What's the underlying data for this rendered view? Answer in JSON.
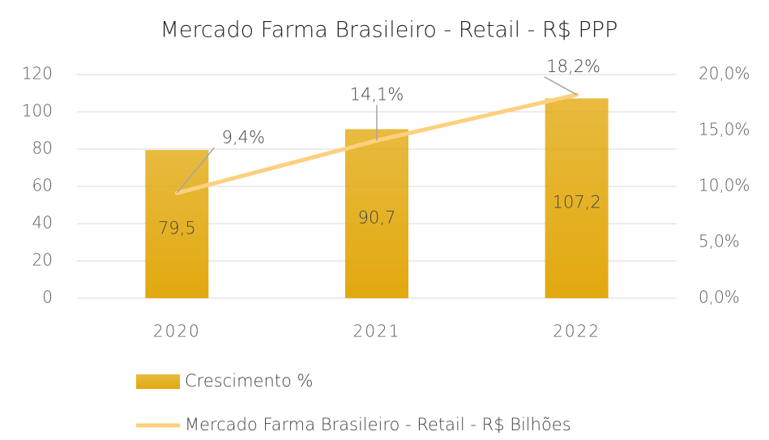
{
  "chart_data": {
    "type": "bar",
    "title": "Mercado Farma Brasileiro - Retail - R$ PPP",
    "categories": [
      "2020",
      "2021",
      "2022"
    ],
    "series": [
      {
        "name": "Crescimento %",
        "type": "bar",
        "color": "#e2a90f",
        "values": [
          79.5,
          90.7,
          107.2
        ],
        "value_labels": [
          "79,5",
          "90,7",
          "107,2"
        ]
      },
      {
        "name": "Mercado Farma Brasileiro - Retail - R$ Bilhões",
        "type": "line",
        "axis": "y2",
        "color": "#fdd07f",
        "values": [
          9.4,
          14.1,
          18.2
        ],
        "value_labels": [
          "9,4%",
          "14,1%",
          "18,2%"
        ]
      }
    ],
    "ylim": [
      0,
      120
    ],
    "yticks": [
      0,
      20,
      40,
      60,
      80,
      100,
      120
    ],
    "y2lim": [
      0,
      20
    ],
    "y2ticks": [
      {
        "value": 0,
        "label": "0,0%"
      },
      {
        "value": 5,
        "label": "5,0%"
      },
      {
        "value": 10,
        "label": "10,0%"
      },
      {
        "value": 15,
        "label": "15,0%"
      },
      {
        "value": 20,
        "label": "20,0%"
      }
    ],
    "grid": true,
    "legend": "bottom"
  }
}
